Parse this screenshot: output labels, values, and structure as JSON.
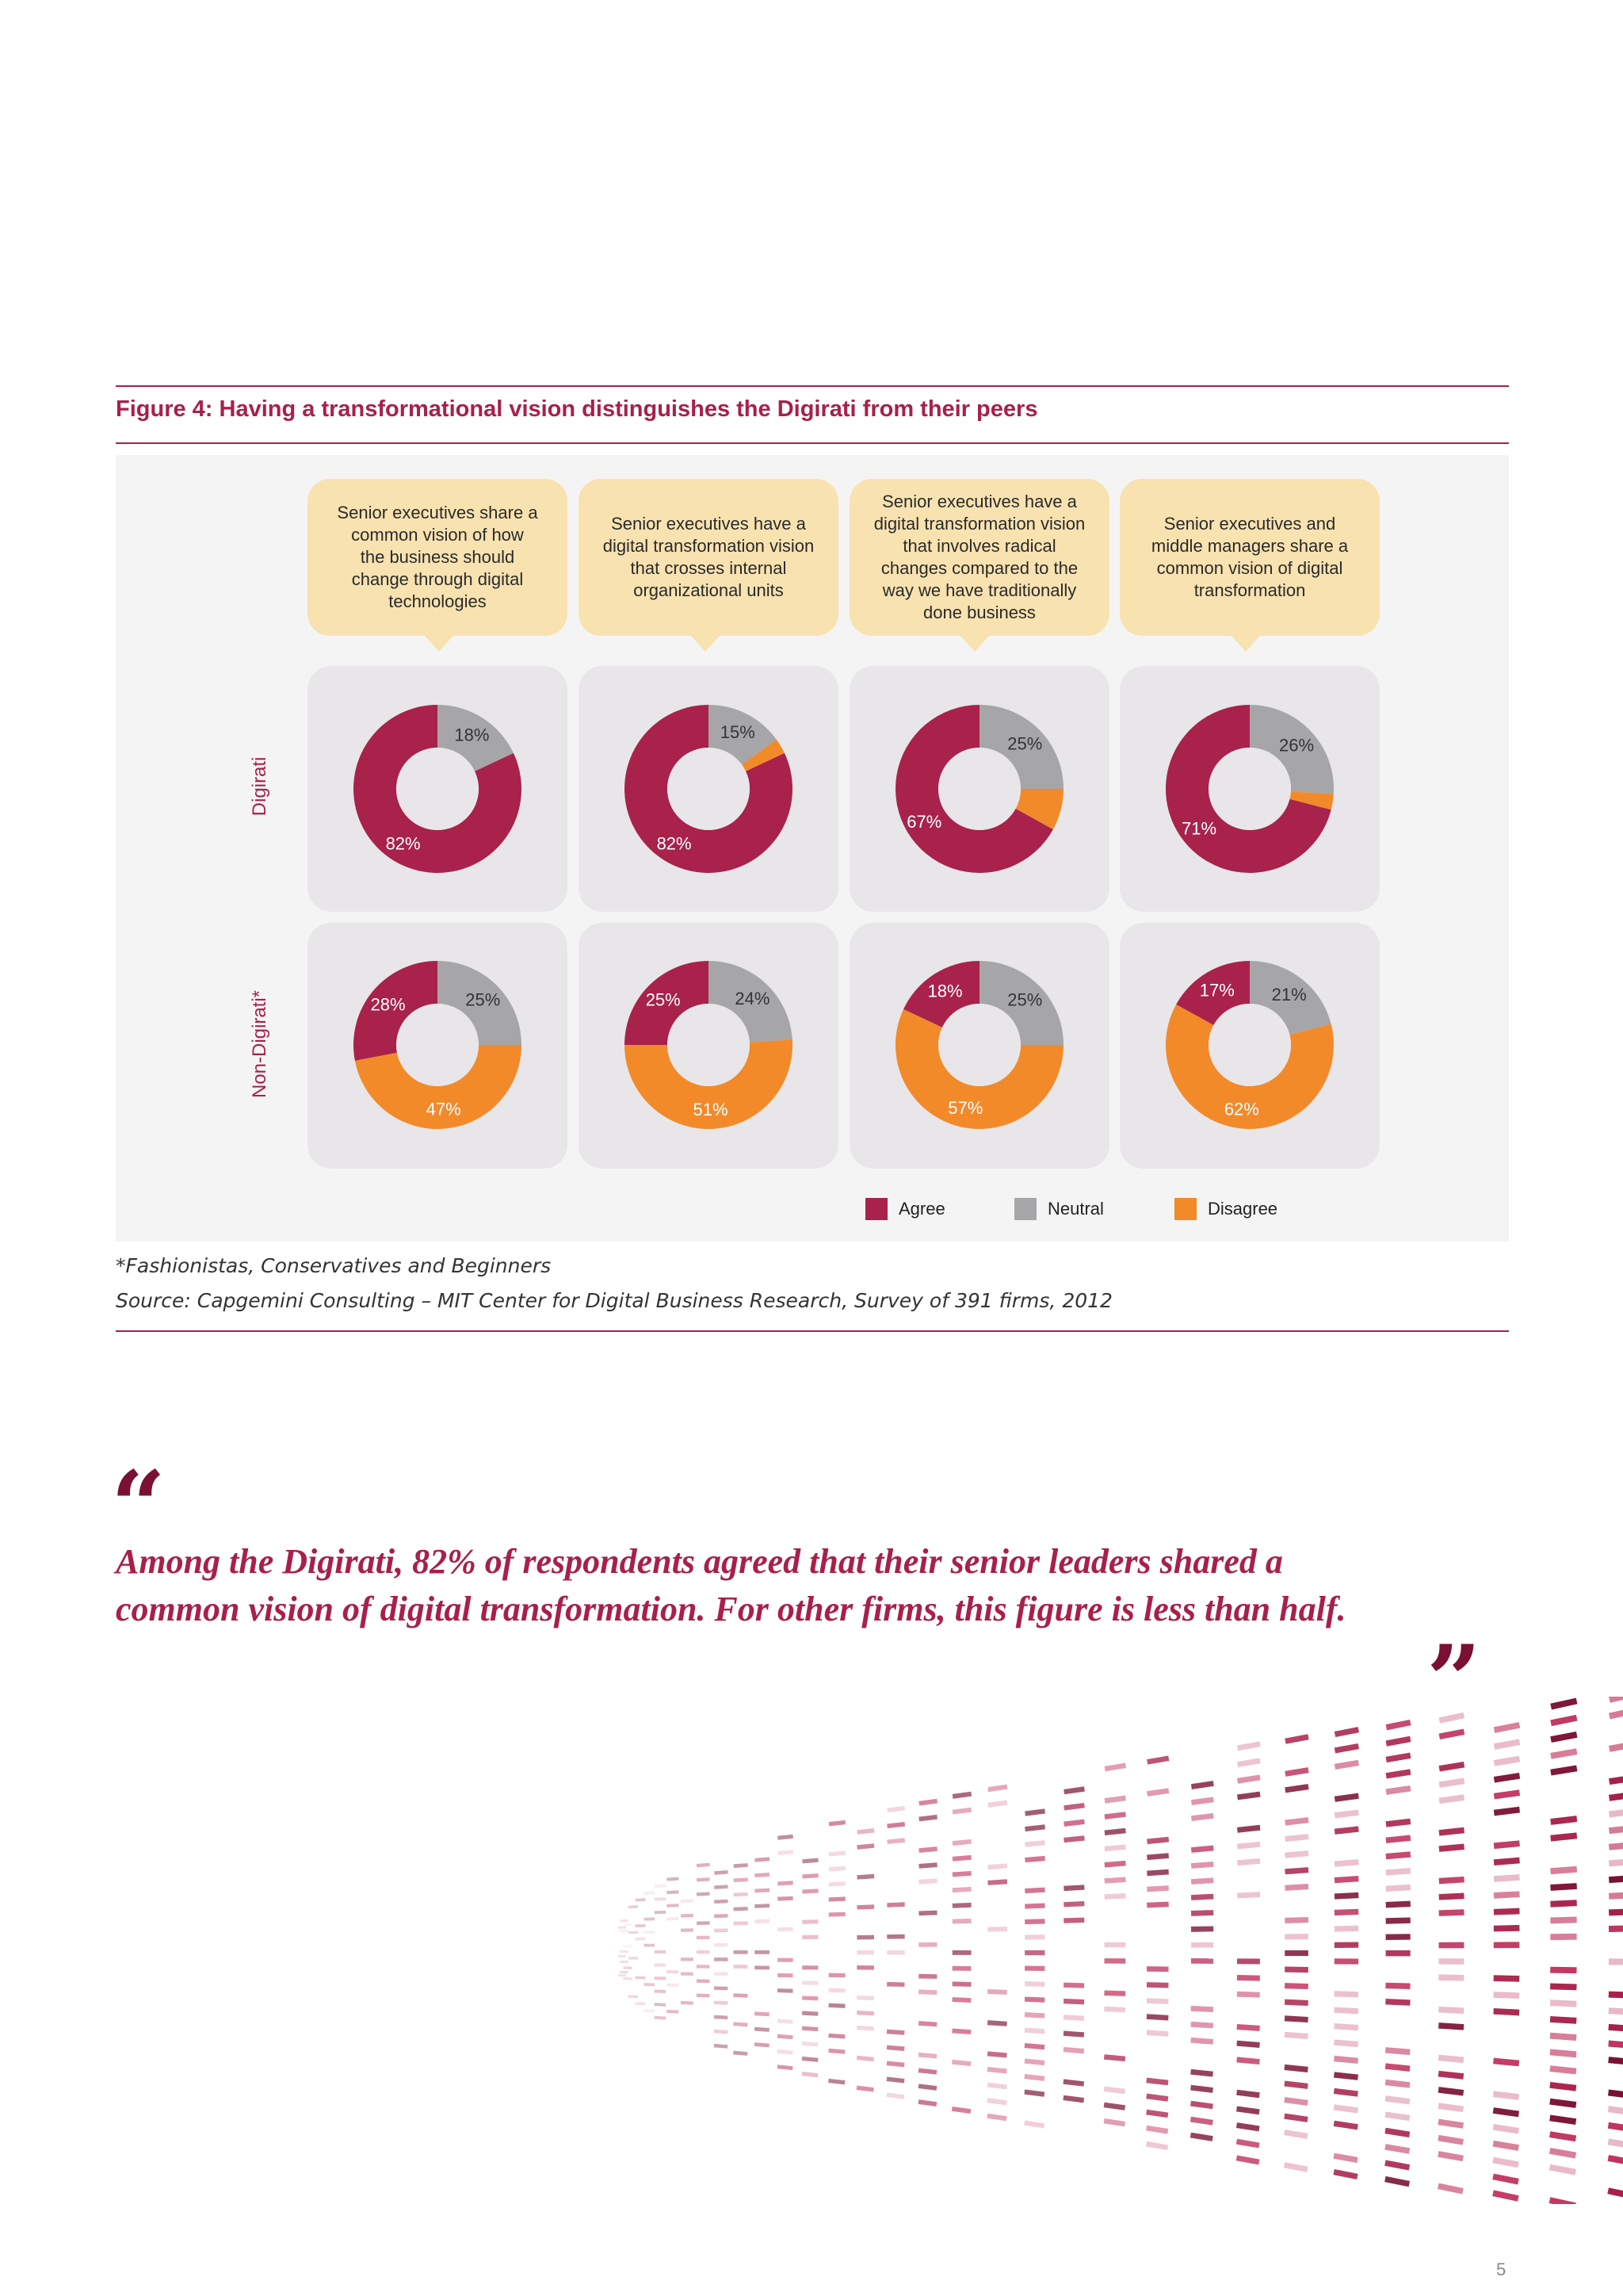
{
  "figure_title": "Figure 4: Having a transformational vision distinguishes the Digirati from their peers",
  "colors": {
    "agree": "#a8224c",
    "neutral": "#a6a5a8",
    "disagree": "#f28a2a",
    "accent": "#a8204a"
  },
  "row_labels": [
    "Digirati",
    "Non-Digirati*"
  ],
  "bubbles": [
    "Senior executives share a\ncommon vision of how\nthe business should\nchange through digital\ntechnologies",
    "Senior executives have a\ndigital transformation vision\nthat crosses internal\norganizational units",
    "Senior executives have a\ndigital transformation vision\nthat involves radical\nchanges compared to the\nway we have traditionally\ndone business",
    "Senior executives and\nmiddle managers share a\ncommon vision of digital\ntransformation"
  ],
  "chart_data": {
    "type": "pie",
    "legend": [
      "Agree",
      "Neutral",
      "Disagree"
    ],
    "legend_placement": "bottom-right",
    "donuts": [
      {
        "row": "Digirati",
        "column": 1,
        "agree": 82,
        "neutral": 18,
        "disagree": 0,
        "labels": {
          "agree": "82%",
          "neutral": "18%",
          "disagree": ""
        }
      },
      {
        "row": "Digirati",
        "column": 2,
        "agree": 82,
        "neutral": 15,
        "disagree": 3,
        "labels": {
          "agree": "82%",
          "neutral": "15%",
          "disagree": ""
        }
      },
      {
        "row": "Digirati",
        "column": 3,
        "agree": 67,
        "neutral": 25,
        "disagree": 8,
        "labels": {
          "agree": "67%",
          "neutral": "25%",
          "disagree": ""
        }
      },
      {
        "row": "Digirati",
        "column": 4,
        "agree": 71,
        "neutral": 26,
        "disagree": 3,
        "labels": {
          "agree": "71%",
          "neutral": "26%",
          "disagree": ""
        }
      },
      {
        "row": "Non-Digirati*",
        "column": 1,
        "agree": 28,
        "neutral": 25,
        "disagree": 47,
        "labels": {
          "agree": "28%",
          "neutral": "25%",
          "disagree": "47%"
        }
      },
      {
        "row": "Non-Digirati*",
        "column": 2,
        "agree": 25,
        "neutral": 24,
        "disagree": 51,
        "labels": {
          "agree": "25%",
          "neutral": "24%",
          "disagree": "51%"
        }
      },
      {
        "row": "Non-Digirati*",
        "column": 3,
        "agree": 18,
        "neutral": 25,
        "disagree": 57,
        "labels": {
          "agree": "18%",
          "neutral": "25%",
          "disagree": "57%"
        }
      },
      {
        "row": "Non-Digirati*",
        "column": 4,
        "agree": 17,
        "neutral": 21,
        "disagree": 62,
        "labels": {
          "agree": "17%",
          "neutral": "21%",
          "disagree": "62%"
        }
      }
    ]
  },
  "footnote": "*Fashionistas, Conservatives and Beginners",
  "source": "Source: Capgemini Consulting – MIT Center for Digital Business Research, Survey of 391 firms, 2012",
  "quote": {
    "open_mark": "“",
    "line1": "Among the Digirati, 82% of respondents agreed that their senior leaders shared a",
    "line2": "common vision of digital transformation.  For other firms, this figure is less than half.",
    "close_mark": "”"
  },
  "page_number": "5"
}
